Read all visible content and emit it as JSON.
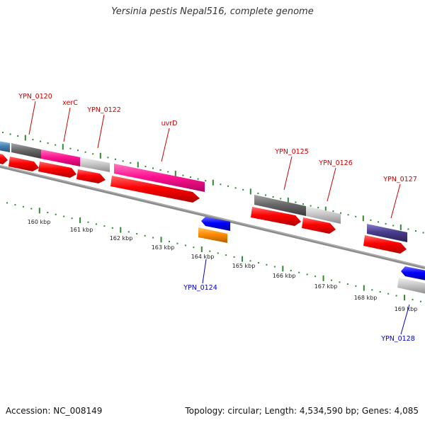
{
  "title": "Yersinia pestis Nepal516, complete genome",
  "footer": {
    "accession": "Accession: NC_008149",
    "summary": "Topology: circular; Length: 4,534,590 bp; Genes: 4,085"
  },
  "colors": {
    "backbone": "#8c8c8c",
    "tick": "#2e8b2e",
    "label_top": "#cc0000",
    "label_bottom": "#0000cc",
    "cds": "#ff0000",
    "gene_magenta": "#ff1493",
    "gene_darkgray": "#696969",
    "gene_lightgray": "#c8c8c8",
    "gene_blue": "#0000ff",
    "gene_orange": "#ff8c00",
    "gene_navy": "#483d8b",
    "gene_steel": "#4682b4"
  },
  "scale_labels": [
    "160 kbp",
    "161 kbp",
    "162 kbp",
    "163 kbp",
    "164 kbp",
    "165 kbp",
    "166 kbp",
    "167 kbp",
    "168 kbp",
    "169 kbp"
  ],
  "gene_labels_top": [
    "YPN_0120",
    "xerC",
    "YPN_0122",
    "uvrD",
    "YPN_0125",
    "YPN_0126",
    "YPN_0127"
  ],
  "gene_labels_bottom": [
    "YPN_0124",
    "YPN_0128"
  ]
}
